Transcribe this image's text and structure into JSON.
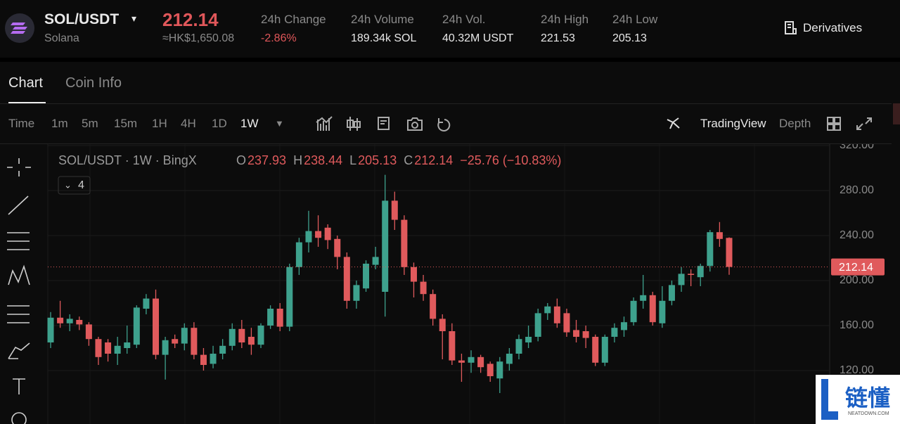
{
  "header": {
    "symbol": "SOL/USDT",
    "name": "Solana",
    "price": "212.14",
    "price_local": "≈HK$1,650.08",
    "stats": [
      {
        "label": "24h Change",
        "value": "-2.86%"
      },
      {
        "label": "24h Volume",
        "value": "189.34k SOL"
      },
      {
        "label": "24h Vol.",
        "value": "40.32M USDT"
      },
      {
        "label": "24h High",
        "value": "221.53"
      },
      {
        "label": "24h Low",
        "value": "205.13"
      }
    ],
    "derivatives": "Derivatives"
  },
  "tabs": [
    "Chart",
    "Coin Info"
  ],
  "toolbar": {
    "time": "Time",
    "intervals": [
      "1m",
      "5m",
      "15m",
      "1H",
      "4H",
      "1D",
      "1W"
    ],
    "tradingview": "TradingView",
    "depth": "Depth"
  },
  "watermark": {
    "title": "链懂",
    "site": "NEATDOWN.COM"
  },
  "chart_data": {
    "type": "candlestick",
    "title": "SOL/USDT · 1W · BingX",
    "ohlc": [
      {
        "label": "O",
        "value": "237.93"
      },
      {
        "label": "H",
        "value": "238.44"
      },
      {
        "label": "L",
        "value": "205.13"
      },
      {
        "label": "C",
        "value": "212.14"
      }
    ],
    "change": "−25.76 (−10.83%)",
    "indicators": "4",
    "up_color": "#3ea18d",
    "down_color": "#e05a5c",
    "last_price": 212.14,
    "last_price_label": "212.14",
    "ylim": [
      72.5,
      321.25
    ],
    "yticks": [
      {
        "value": 120,
        "label": "120.00"
      },
      {
        "value": 160,
        "label": "160.00"
      },
      {
        "value": 200,
        "label": "200.00"
      },
      {
        "value": 240,
        "label": "240.00"
      },
      {
        "value": 280,
        "label": "280.00"
      },
      {
        "value": 320,
        "label": "320.00"
      }
    ],
    "grid": true,
    "candles": [
      {
        "open": 145,
        "high": 172,
        "low": 140,
        "close": 167
      },
      {
        "open": 167,
        "high": 182,
        "low": 158,
        "close": 162
      },
      {
        "open": 162,
        "high": 170,
        "low": 155,
        "close": 166
      },
      {
        "open": 165,
        "high": 168,
        "low": 156,
        "close": 161
      },
      {
        "open": 161,
        "high": 163,
        "low": 142,
        "close": 148
      },
      {
        "open": 148,
        "high": 150,
        "low": 125,
        "close": 132
      },
      {
        "open": 145,
        "high": 148,
        "low": 128,
        "close": 135
      },
      {
        "open": 135,
        "high": 150,
        "low": 125,
        "close": 142
      },
      {
        "open": 140,
        "high": 160,
        "low": 135,
        "close": 145
      },
      {
        "open": 143,
        "high": 178,
        "low": 140,
        "close": 176
      },
      {
        "open": 175,
        "high": 188,
        "low": 170,
        "close": 184
      },
      {
        "open": 184,
        "high": 192,
        "low": 130,
        "close": 134
      },
      {
        "open": 134,
        "high": 150,
        "low": 112,
        "close": 147
      },
      {
        "open": 148,
        "high": 152,
        "low": 140,
        "close": 144
      },
      {
        "open": 144,
        "high": 162,
        "low": 138,
        "close": 158
      },
      {
        "open": 158,
        "high": 163,
        "low": 130,
        "close": 134
      },
      {
        "open": 134,
        "high": 140,
        "low": 120,
        "close": 125
      },
      {
        "open": 126,
        "high": 142,
        "low": 122,
        "close": 135
      },
      {
        "open": 135,
        "high": 148,
        "low": 130,
        "close": 142
      },
      {
        "open": 142,
        "high": 162,
        "low": 138,
        "close": 157
      },
      {
        "open": 157,
        "high": 165,
        "low": 140,
        "close": 145
      },
      {
        "open": 150,
        "high": 158,
        "low": 134,
        "close": 143
      },
      {
        "open": 143,
        "high": 162,
        "low": 140,
        "close": 160
      },
      {
        "open": 160,
        "high": 178,
        "low": 157,
        "close": 175
      },
      {
        "open": 175,
        "high": 180,
        "low": 155,
        "close": 159
      },
      {
        "open": 159,
        "high": 215,
        "low": 155,
        "close": 212
      },
      {
        "open": 212,
        "high": 238,
        "low": 205,
        "close": 234
      },
      {
        "open": 234,
        "high": 262,
        "low": 225,
        "close": 244
      },
      {
        "open": 244,
        "high": 258,
        "low": 230,
        "close": 238
      },
      {
        "open": 247,
        "high": 250,
        "low": 228,
        "close": 236
      },
      {
        "open": 237,
        "high": 240,
        "low": 210,
        "close": 221
      },
      {
        "open": 221,
        "high": 225,
        "low": 175,
        "close": 182
      },
      {
        "open": 182,
        "high": 200,
        "low": 175,
        "close": 196
      },
      {
        "open": 193,
        "high": 218,
        "low": 190,
        "close": 215
      },
      {
        "open": 214,
        "high": 230,
        "low": 210,
        "close": 221
      },
      {
        "open": 190,
        "high": 294,
        "low": 168,
        "close": 271
      },
      {
        "open": 271,
        "high": 279,
        "low": 245,
        "close": 254
      },
      {
        "open": 254,
        "high": 258,
        "low": 205,
        "close": 212
      },
      {
        "open": 212,
        "high": 216,
        "low": 185,
        "close": 199
      },
      {
        "open": 199,
        "high": 205,
        "low": 182,
        "close": 188
      },
      {
        "open": 188,
        "high": 192,
        "low": 160,
        "close": 166
      },
      {
        "open": 166,
        "high": 170,
        "low": 130,
        "close": 155
      },
      {
        "open": 155,
        "high": 162,
        "low": 125,
        "close": 129
      },
      {
        "open": 129,
        "high": 135,
        "low": 110,
        "close": 127
      },
      {
        "open": 127,
        "high": 138,
        "low": 118,
        "close": 132
      },
      {
        "open": 132,
        "high": 134,
        "low": 118,
        "close": 123
      },
      {
        "open": 126,
        "high": 128,
        "low": 110,
        "close": 115
      },
      {
        "open": 113,
        "high": 132,
        "low": 100,
        "close": 128
      },
      {
        "open": 126,
        "high": 140,
        "low": 120,
        "close": 135
      },
      {
        "open": 135,
        "high": 152,
        "low": 130,
        "close": 148
      },
      {
        "open": 145,
        "high": 160,
        "low": 140,
        "close": 150
      },
      {
        "open": 150,
        "high": 175,
        "low": 146,
        "close": 171
      },
      {
        "open": 171,
        "high": 180,
        "low": 165,
        "close": 177
      },
      {
        "open": 177,
        "high": 184,
        "low": 158,
        "close": 162
      },
      {
        "open": 171,
        "high": 175,
        "low": 150,
        "close": 154
      },
      {
        "open": 156,
        "high": 165,
        "low": 145,
        "close": 150
      },
      {
        "open": 155,
        "high": 160,
        "low": 140,
        "close": 149
      },
      {
        "open": 150,
        "high": 152,
        "low": 124,
        "close": 127
      },
      {
        "open": 127,
        "high": 152,
        "low": 124,
        "close": 150
      },
      {
        "open": 150,
        "high": 162,
        "low": 145,
        "close": 158
      },
      {
        "open": 156,
        "high": 168,
        "low": 150,
        "close": 163
      },
      {
        "open": 163,
        "high": 185,
        "low": 160,
        "close": 182
      },
      {
        "open": 182,
        "high": 205,
        "low": 175,
        "close": 187
      },
      {
        "open": 187,
        "high": 190,
        "low": 160,
        "close": 163
      },
      {
        "open": 162,
        "high": 195,
        "low": 158,
        "close": 182
      },
      {
        "open": 182,
        "high": 200,
        "low": 178,
        "close": 196
      },
      {
        "open": 196,
        "high": 212,
        "low": 190,
        "close": 206
      },
      {
        "open": 206,
        "high": 210,
        "low": 195,
        "close": 205
      },
      {
        "open": 203,
        "high": 215,
        "low": 195,
        "close": 213
      },
      {
        "open": 213,
        "high": 245,
        "low": 208,
        "close": 243
      },
      {
        "open": 243,
        "high": 252,
        "low": 230,
        "close": 237
      },
      {
        "open": 237.93,
        "high": 238.44,
        "low": 205.13,
        "close": 212.14
      }
    ]
  }
}
